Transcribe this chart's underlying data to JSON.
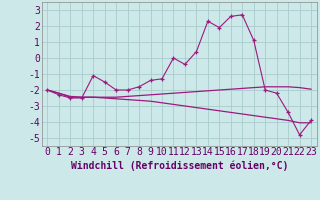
{
  "xlabel": "Windchill (Refroidissement éolien,°C)",
  "x": [
    0,
    1,
    2,
    3,
    4,
    5,
    6,
    7,
    8,
    9,
    10,
    11,
    12,
    13,
    14,
    15,
    16,
    17,
    18,
    19,
    20,
    21,
    22,
    23
  ],
  "line1": [
    -2.0,
    -2.3,
    -2.5,
    -2.5,
    -1.1,
    -1.5,
    -2.0,
    -2.0,
    -1.8,
    -1.4,
    -1.3,
    0.0,
    -0.4,
    0.4,
    2.3,
    1.9,
    2.6,
    2.7,
    1.1,
    -2.0,
    -2.2,
    -3.4,
    -4.8,
    -3.9
  ],
  "line2": [
    -2.0,
    -2.2,
    -2.45,
    -2.45,
    -2.45,
    -2.45,
    -2.45,
    -2.4,
    -2.35,
    -2.3,
    -2.25,
    -2.2,
    -2.15,
    -2.1,
    -2.05,
    -2.0,
    -1.95,
    -1.9,
    -1.85,
    -1.8,
    -1.8,
    -1.8,
    -1.85,
    -1.95
  ],
  "line3": [
    -2.0,
    -2.2,
    -2.4,
    -2.45,
    -2.45,
    -2.5,
    -2.55,
    -2.6,
    -2.65,
    -2.7,
    -2.8,
    -2.9,
    -3.0,
    -3.1,
    -3.2,
    -3.3,
    -3.4,
    -3.5,
    -3.6,
    -3.7,
    -3.8,
    -3.9,
    -4.05,
    -4.05
  ],
  "color": "#9b1a7f",
  "bg_color": "#cce8e8",
  "grid_color": "#aacccc",
  "ylim": [
    -5.5,
    3.5
  ],
  "yticks": [
    -5,
    -4,
    -3,
    -2,
    -1,
    0,
    1,
    2,
    3
  ],
  "tick_fontsize": 7,
  "xlabel_fontsize": 7
}
